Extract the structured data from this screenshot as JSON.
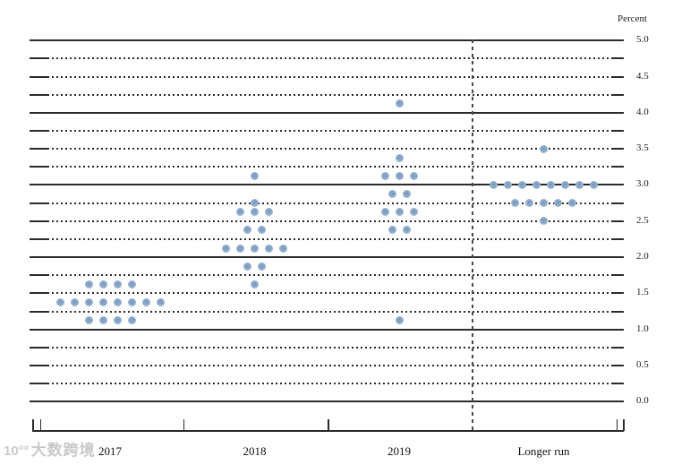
{
  "header": {
    "unit_label": "Percent"
  },
  "watermark": {
    "prefix": "10°°",
    "text": "大数跨境"
  },
  "chart_data": {
    "type": "scatter",
    "subtype": "fomc-dot-plot",
    "title": "",
    "xlabel": "",
    "ylabel": "Percent",
    "ylim": [
      0.0,
      5.0
    ],
    "gridline_step": 0.25,
    "label_step": 0.5,
    "grid_on": true,
    "ytick_labels": [
      "5.0",
      "4.5",
      "4.0",
      "3.5",
      "3.0",
      "2.5",
      "2.0",
      "1.5",
      "1.0",
      "0.5",
      "0.0"
    ],
    "categories": [
      "2017",
      "2018",
      "2019",
      "Longer run"
    ],
    "separator_before_category": "Longer run",
    "colors": {
      "dot": "#92afcd",
      "grid": "#2b2b2b",
      "separator": "#4a4a4a"
    },
    "dots": [
      {
        "category": "2017",
        "rate": 1.625,
        "count": 4
      },
      {
        "category": "2017",
        "rate": 1.375,
        "count": 8
      },
      {
        "category": "2017",
        "rate": 1.125,
        "count": 4
      },
      {
        "category": "2018",
        "rate": 3.125,
        "count": 1
      },
      {
        "category": "2018",
        "rate": 2.75,
        "count": 1
      },
      {
        "category": "2018",
        "rate": 2.625,
        "count": 3
      },
      {
        "category": "2018",
        "rate": 2.375,
        "count": 2
      },
      {
        "category": "2018",
        "rate": 2.125,
        "count": 5
      },
      {
        "category": "2018",
        "rate": 1.875,
        "count": 2
      },
      {
        "category": "2018",
        "rate": 1.625,
        "count": 1
      },
      {
        "category": "2019",
        "rate": 4.125,
        "count": 1
      },
      {
        "category": "2019",
        "rate": 3.375,
        "count": 1
      },
      {
        "category": "2019",
        "rate": 3.125,
        "count": 3
      },
      {
        "category": "2019",
        "rate": 2.875,
        "count": 2
      },
      {
        "category": "2019",
        "rate": 2.625,
        "count": 3
      },
      {
        "category": "2019",
        "rate": 2.375,
        "count": 2
      },
      {
        "category": "2019",
        "rate": 1.125,
        "count": 1
      },
      {
        "category": "Longer run",
        "rate": 3.5,
        "count": 1
      },
      {
        "category": "Longer run",
        "rate": 3.0,
        "count": 8
      },
      {
        "category": "Longer run",
        "rate": 2.75,
        "count": 5
      },
      {
        "category": "Longer run",
        "rate": 2.5,
        "count": 1
      }
    ]
  }
}
